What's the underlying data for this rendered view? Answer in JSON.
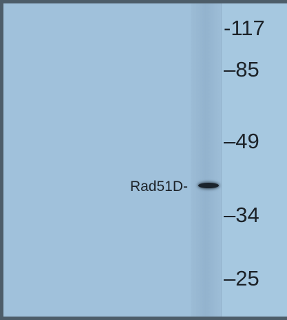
{
  "band_label": "Rad51D-",
  "markers": [
    {
      "label": "-117"
    },
    {
      "label": "–85"
    },
    {
      "label": "–49"
    },
    {
      "label": "–34"
    },
    {
      "label": "–25"
    }
  ]
}
